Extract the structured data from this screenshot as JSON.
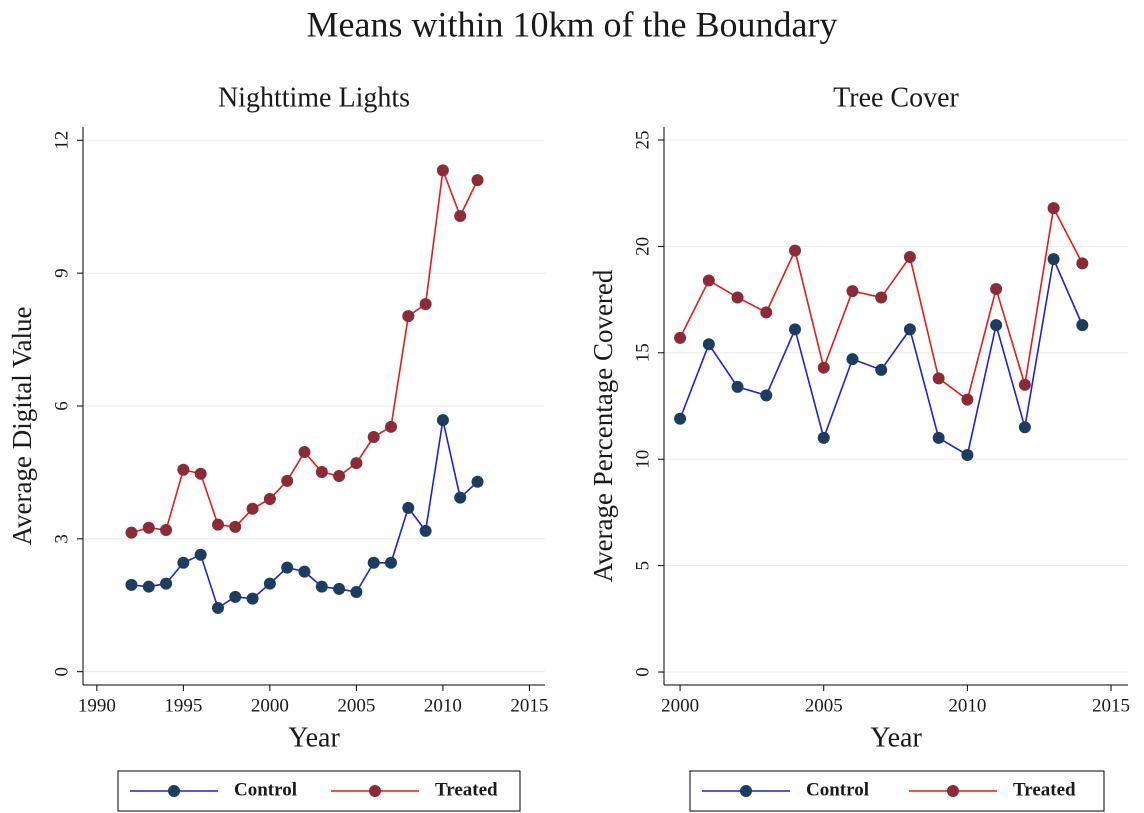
{
  "title": "Means within 10km of the Boundary",
  "chart_data": [
    {
      "type": "line",
      "title": "Nighttime Lights",
      "x_label": "Year",
      "y_label": "Average Digital Value",
      "x": [
        1992,
        1993,
        1994,
        1995,
        1996,
        1997,
        1998,
        1999,
        2000,
        2001,
        2002,
        2003,
        2004,
        2005,
        2006,
        2007,
        2008,
        2009,
        2010,
        2011,
        2012
      ],
      "series": [
        {
          "name": "Control",
          "color": "#1f1fe0",
          "marker_color": "#1c3d5e",
          "values": [
            1.96,
            1.92,
            1.99,
            2.46,
            2.64,
            1.44,
            1.69,
            1.65,
            1.99,
            2.35,
            2.26,
            1.92,
            1.87,
            1.8,
            2.46,
            2.46,
            3.7,
            3.18,
            5.68,
            3.93,
            4.29
          ]
        },
        {
          "name": "Treated",
          "color": "#e41a1a",
          "marker_color": "#8c2b38",
          "values": [
            3.14,
            3.25,
            3.2,
            4.56,
            4.47,
            3.32,
            3.27,
            3.68,
            3.9,
            4.31,
            4.96,
            4.51,
            4.42,
            4.71,
            5.3,
            5.53,
            8.03,
            8.3,
            11.32,
            10.29,
            11.1
          ]
        }
      ],
      "xlim": [
        1989.2,
        2015.9
      ],
      "ylim": [
        -0.3,
        12.3
      ],
      "xticks": [
        1990,
        1995,
        2000,
        2005,
        2010,
        2015
      ],
      "yticks": [
        0,
        3,
        6,
        9,
        12
      ],
      "grid": true,
      "legend": "bottom"
    },
    {
      "type": "line",
      "title": "Tree Cover",
      "x_label": "Year",
      "y_label": "Average Percentage Covered",
      "x": [
        2000,
        2001,
        2002,
        2003,
        2004,
        2005,
        2006,
        2007,
        2008,
        2009,
        2010,
        2011,
        2012,
        2013,
        2014
      ],
      "series": [
        {
          "name": "Control",
          "color": "#1f1fe0",
          "marker_color": "#1c3d5e",
          "values": [
            11.9,
            15.4,
            13.4,
            13.0,
            16.1,
            11.0,
            14.7,
            14.2,
            16.1,
            11.0,
            10.2,
            16.3,
            11.5,
            19.4,
            16.3
          ]
        },
        {
          "name": "Treated",
          "color": "#e41a1a",
          "marker_color": "#8c2b38",
          "values": [
            15.7,
            18.4,
            17.6,
            16.9,
            19.8,
            14.3,
            17.9,
            17.6,
            19.5,
            13.8,
            12.8,
            18.0,
            13.5,
            21.8,
            19.2
          ]
        }
      ],
      "xlim": [
        1999.44,
        2015.59
      ],
      "ylim": [
        -0.61,
        25.61
      ],
      "xticks": [
        2000,
        2005,
        2010,
        2015
      ],
      "yticks": [
        0,
        5,
        10,
        15,
        20,
        25
      ],
      "grid": true,
      "legend": "bottom"
    }
  ]
}
